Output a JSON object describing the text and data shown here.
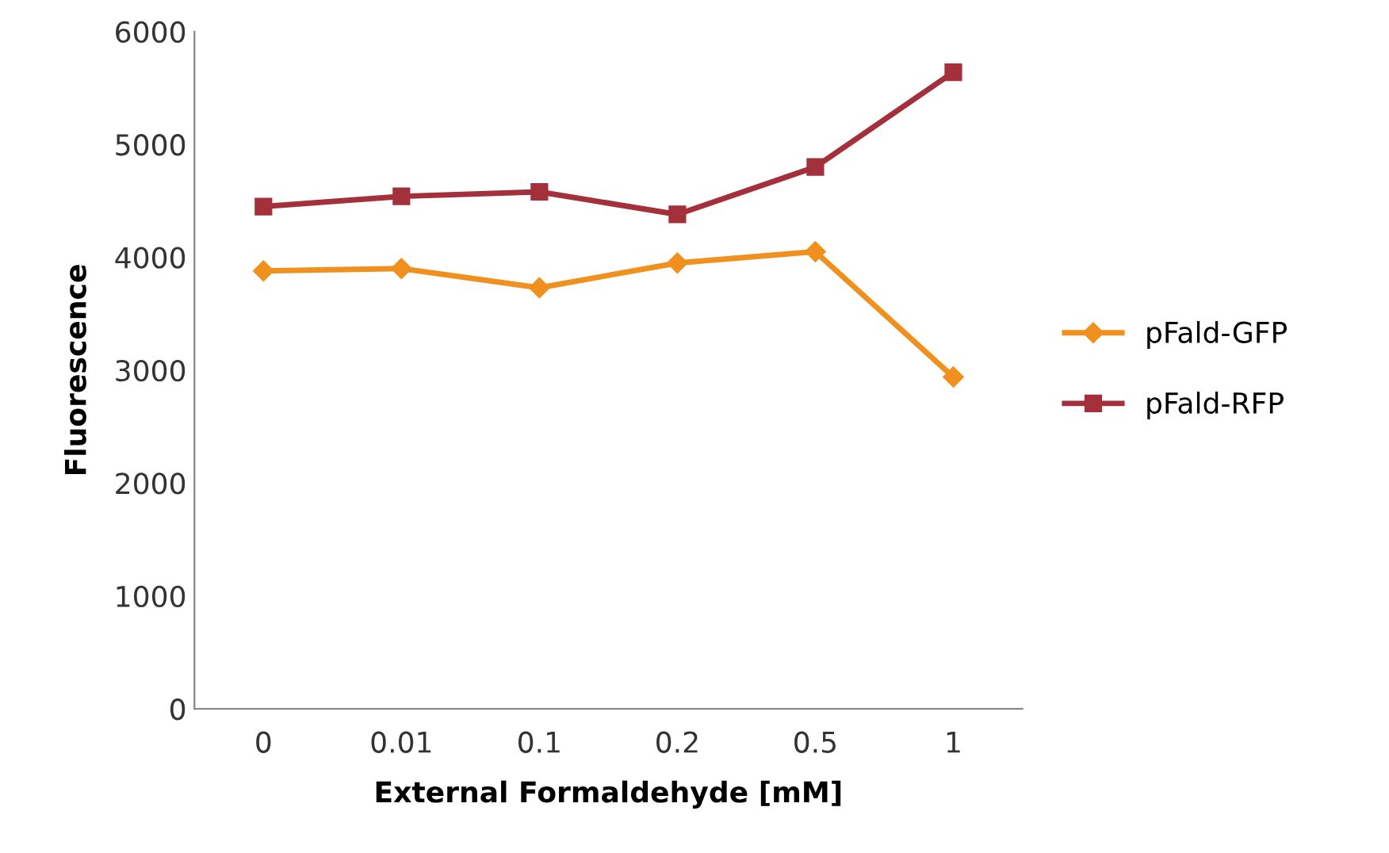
{
  "chart_data": {
    "type": "line",
    "xlabel": "External Formaldehyde [mM]",
    "ylabel": "Fluorescence",
    "categories": [
      "0",
      "0.01",
      "0.1",
      "0.2",
      "0.5",
      "1"
    ],
    "series": [
      {
        "name": "pFald-GFP",
        "color": "#f0901e",
        "marker": "diamond",
        "values": [
          3880,
          3900,
          3730,
          3950,
          4050,
          2940
        ]
      },
      {
        "name": "pFald-RFP",
        "color": "#a3303a",
        "marker": "square",
        "values": [
          4450,
          4540,
          4580,
          4380,
          4800,
          5640
        ]
      }
    ],
    "ylim": [
      0,
      6000
    ],
    "yticks": [
      0,
      1000,
      2000,
      3000,
      4000,
      5000,
      6000
    ],
    "grid": false,
    "legend": "right",
    "line_style": "solid"
  }
}
